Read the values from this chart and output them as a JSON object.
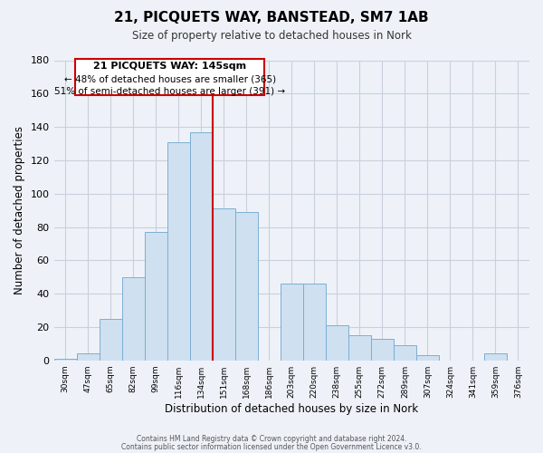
{
  "title": "21, PICQUETS WAY, BANSTEAD, SM7 1AB",
  "subtitle": "Size of property relative to detached houses in Nork",
  "xlabel": "Distribution of detached houses by size in Nork",
  "ylabel": "Number of detached properties",
  "bar_color": "#cfe0f0",
  "bar_edge_color": "#7bafd4",
  "categories": [
    "30sqm",
    "47sqm",
    "65sqm",
    "82sqm",
    "99sqm",
    "116sqm",
    "134sqm",
    "151sqm",
    "168sqm",
    "186sqm",
    "203sqm",
    "220sqm",
    "238sqm",
    "255sqm",
    "272sqm",
    "289sqm",
    "307sqm",
    "324sqm",
    "341sqm",
    "359sqm",
    "376sqm"
  ],
  "values": [
    1,
    4,
    25,
    50,
    77,
    131,
    137,
    91,
    89,
    0,
    46,
    46,
    21,
    15,
    13,
    9,
    3,
    0,
    0,
    4,
    0
  ],
  "ylim": [
    0,
    180
  ],
  "yticks": [
    0,
    20,
    40,
    60,
    80,
    100,
    120,
    140,
    160,
    180
  ],
  "marker_label": "21 PICQUETS WAY: 145sqm",
  "annotation_line1": "← 48% of detached houses are smaller (365)",
  "annotation_line2": "51% of semi-detached houses are larger (391) →",
  "marker_color": "#cc0000",
  "annotation_box_edge": "#cc0000",
  "footer_line1": "Contains HM Land Registry data © Crown copyright and database right 2024.",
  "footer_line2": "Contains public sector information licensed under the Open Government Licence v3.0.",
  "background_color": "#eef2f8",
  "plot_background": "#eef2f8",
  "grid_color": "#c8d0dc"
}
